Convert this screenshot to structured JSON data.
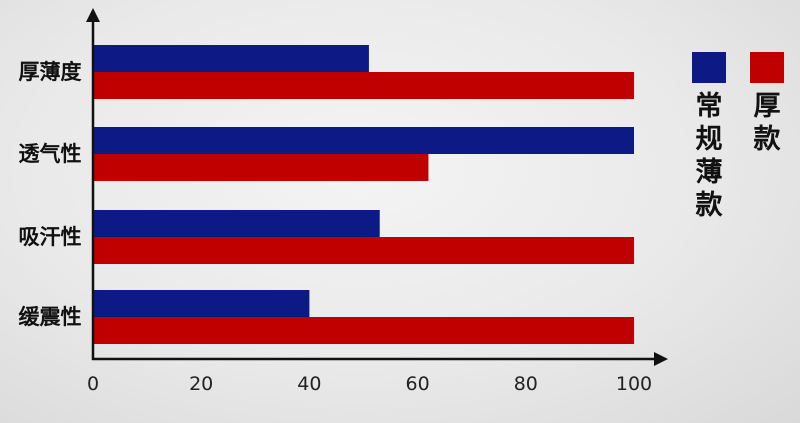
{
  "chart_data": {
    "type": "bar",
    "orientation": "horizontal",
    "categories": [
      "厚薄度",
      "透气性",
      "吸汗性",
      "缓震性"
    ],
    "series": [
      {
        "name": "常规薄款",
        "color": "#0d1a86",
        "values": [
          51,
          100,
          53,
          40
        ]
      },
      {
        "name": "厚款",
        "color": "#c00000",
        "values": [
          100,
          62,
          100,
          100
        ]
      }
    ],
    "xticks": [
      "0",
      "20",
      "40",
      "60",
      "80",
      "100"
    ],
    "xlim": [
      0,
      100
    ],
    "grid": false,
    "legend_position": "right"
  }
}
